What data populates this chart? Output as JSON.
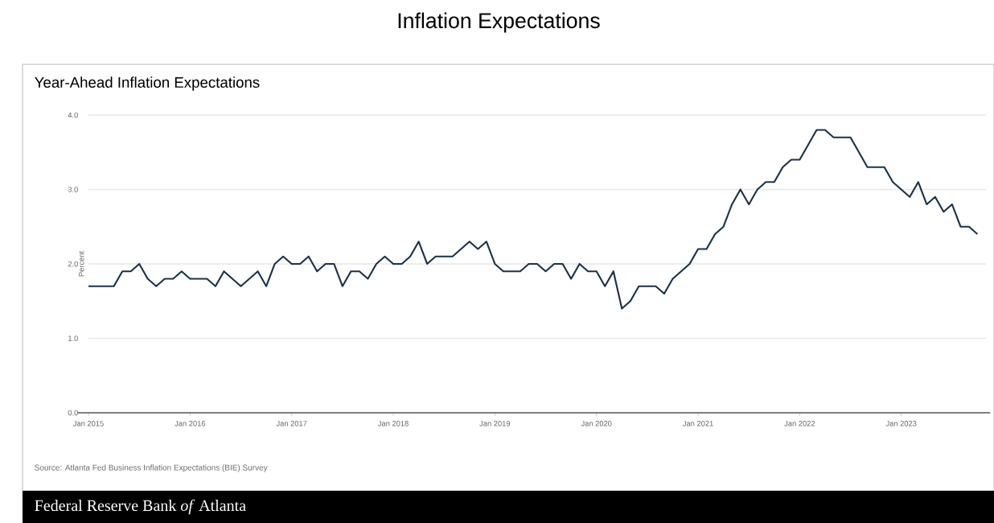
{
  "chart_data": {
    "type": "line",
    "title": "Inflation Expectations",
    "subtitle": "Year-Ahead Inflation Expectations",
    "ylabel": "Percent",
    "annotations": [
      "Source: Atlanta Fed Business Inflation Expectations (BIE) Survey",
      "Federal Reserve Bank *of* Atlanta"
    ],
    "x": [
      "2015-01",
      "2015-02",
      "2015-03",
      "2015-04",
      "2015-05",
      "2015-06",
      "2015-07",
      "2015-08",
      "2015-09",
      "2015-10",
      "2015-11",
      "2015-12",
      "2016-01",
      "2016-02",
      "2016-03",
      "2016-04",
      "2016-05",
      "2016-06",
      "2016-07",
      "2016-08",
      "2016-09",
      "2016-10",
      "2016-11",
      "2016-12",
      "2017-01",
      "2017-02",
      "2017-03",
      "2017-04",
      "2017-05",
      "2017-06",
      "2017-07",
      "2017-08",
      "2017-09",
      "2017-10",
      "2017-11",
      "2017-12",
      "2018-01",
      "2018-02",
      "2018-03",
      "2018-04",
      "2018-05",
      "2018-06",
      "2018-07",
      "2018-08",
      "2018-09",
      "2018-10",
      "2018-11",
      "2018-12",
      "2019-01",
      "2019-02",
      "2019-03",
      "2019-04",
      "2019-05",
      "2019-06",
      "2019-07",
      "2019-08",
      "2019-09",
      "2019-10",
      "2019-11",
      "2019-12",
      "2020-01",
      "2020-02",
      "2020-03",
      "2020-04",
      "2020-05",
      "2020-06",
      "2020-07",
      "2020-08",
      "2020-09",
      "2020-10",
      "2020-11",
      "2020-12",
      "2021-01",
      "2021-02",
      "2021-03",
      "2021-04",
      "2021-05",
      "2021-06",
      "2021-07",
      "2021-08",
      "2021-09",
      "2021-10",
      "2021-11",
      "2021-12",
      "2022-01",
      "2022-02",
      "2022-03",
      "2022-04",
      "2022-05",
      "2022-06",
      "2022-07",
      "2022-08",
      "2022-09",
      "2022-10",
      "2022-11",
      "2022-12",
      "2023-01",
      "2023-02",
      "2023-03",
      "2023-04",
      "2023-05",
      "2023-06",
      "2023-07",
      "2023-08",
      "2023-09",
      "2023-10"
    ],
    "series": [
      {
        "color": "#1c3249",
        "values": [
          1.7,
          1.7,
          1.7,
          1.7,
          1.9,
          1.9,
          2.0,
          1.8,
          1.7,
          1.8,
          1.8,
          1.9,
          1.8,
          1.8,
          1.8,
          1.7,
          1.9,
          1.8,
          1.7,
          1.8,
          1.9,
          1.7,
          2.0,
          2.1,
          2.0,
          2.0,
          2.1,
          1.9,
          2.0,
          2.0,
          1.7,
          1.9,
          1.9,
          1.8,
          2.0,
          2.1,
          2.0,
          2.0,
          2.1,
          2.3,
          2.0,
          2.1,
          2.1,
          2.1,
          2.2,
          2.3,
          2.2,
          2.3,
          2.0,
          1.9,
          1.9,
          1.9,
          2.0,
          2.0,
          1.9,
          2.0,
          2.0,
          1.8,
          2.0,
          1.9,
          1.9,
          1.7,
          1.9,
          1.4,
          1.5,
          1.7,
          1.7,
          1.7,
          1.6,
          1.8,
          1.9,
          2.0,
          2.2,
          2.2,
          2.4,
          2.5,
          2.8,
          3.0,
          2.8,
          3.0,
          3.1,
          3.1,
          3.3,
          3.4,
          3.4,
          3.6,
          3.8,
          3.8,
          3.7,
          3.7,
          3.7,
          3.5,
          3.3,
          3.3,
          3.3,
          3.1,
          3.0,
          2.9,
          3.1,
          2.8,
          2.9,
          2.7,
          2.8,
          2.5,
          2.5,
          2.4
        ]
      }
    ],
    "xlim": [
      "2015-01",
      "2023-11"
    ],
    "xticks": [
      {
        "value": "2015-01",
        "label": "Jan 2015"
      },
      {
        "value": "2016-01",
        "label": "Jan 2016"
      },
      {
        "value": "2017-01",
        "label": "Jan 2017"
      },
      {
        "value": "2018-01",
        "label": "Jan 2018"
      },
      {
        "value": "2019-01",
        "label": "Jan 2019"
      },
      {
        "value": "2020-01",
        "label": "Jan 2020"
      },
      {
        "value": "2021-01",
        "label": "Jan 2021"
      },
      {
        "value": "2022-01",
        "label": "Jan 2022"
      },
      {
        "value": "2023-01",
        "label": "Jan 2023"
      }
    ],
    "ylim": [
      0,
      4
    ],
    "yticks": [
      {
        "value": 0,
        "label": "0.0"
      },
      {
        "value": 1,
        "label": "1.0"
      },
      {
        "value": 2,
        "label": "2.0"
      },
      {
        "value": 3,
        "label": "3.0"
      },
      {
        "value": 4,
        "label": "4.0"
      }
    ],
    "grid": "y"
  }
}
